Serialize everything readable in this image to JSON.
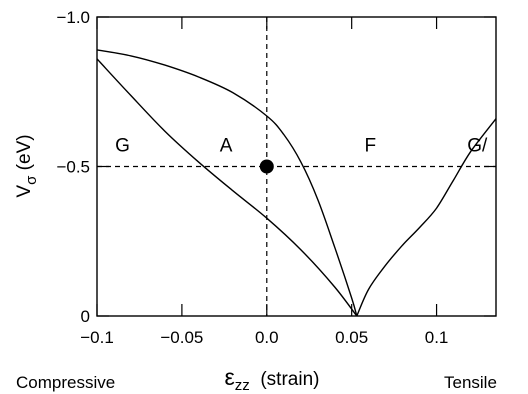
{
  "chart_data": {
    "type": "line",
    "title": "",
    "xlabel": {
      "symbol": "ε",
      "subscript": "zz",
      "text": "(strain)"
    },
    "ylabel": {
      "symbol": "V",
      "subscript": "σ",
      "text": "(eV)"
    },
    "xlim": [
      -0.1,
      0.135
    ],
    "ylim": [
      0,
      -1.0
    ],
    "x_ticks": [
      {
        "value": -0.1,
        "label": "−0.1"
      },
      {
        "value": -0.05,
        "label": "−0.05"
      },
      {
        "value": 0.0,
        "label": "0.0"
      },
      {
        "value": 0.05,
        "label": "0.05"
      },
      {
        "value": 0.1,
        "label": "0.1"
      }
    ],
    "y_ticks": [
      {
        "value": -1.0,
        "label": "−1.0"
      },
      {
        "value": -0.5,
        "label": "−0.5"
      },
      {
        "value": 0.0,
        "label": "0"
      }
    ],
    "series": [
      {
        "x": [
          -0.1,
          -0.08,
          -0.06,
          -0.04,
          -0.02,
          0.0,
          0.02,
          0.04,
          0.053
        ],
        "y": [
          -0.86,
          -0.737,
          -0.618,
          -0.514,
          -0.419,
          -0.327,
          -0.222,
          -0.097,
          0.0
        ]
      },
      {
        "x": [
          -0.1,
          -0.08,
          -0.06,
          -0.04,
          -0.02,
          0.0,
          0.01,
          0.02,
          0.03,
          0.04,
          0.05,
          0.053
        ],
        "y": [
          -0.89,
          -0.87,
          -0.839,
          -0.799,
          -0.747,
          -0.669,
          -0.607,
          -0.516,
          -0.39,
          -0.23,
          -0.06,
          0.0
        ]
      },
      {
        "x": [
          0.053,
          0.06,
          0.07,
          0.08,
          0.09,
          0.1,
          0.11,
          0.12,
          0.135
        ],
        "y": [
          0.0,
          -0.09,
          -0.17,
          -0.237,
          -0.296,
          -0.361,
          -0.455,
          -0.549,
          -0.66
        ]
      }
    ],
    "reference_lines": [
      {
        "orientation": "vertical",
        "x": 0.0
      },
      {
        "orientation": "horizontal",
        "y": -0.5
      }
    ],
    "marker": {
      "x": 0.0,
      "y": -0.5,
      "color": "#000000"
    },
    "region_labels": [
      {
        "text": "G",
        "x": -0.085,
        "y": -0.55
      },
      {
        "text": "A",
        "x": -0.024,
        "y": -0.55
      },
      {
        "text": "F",
        "x": 0.061,
        "y": -0.55
      },
      {
        "text": "G/",
        "x": 0.124,
        "y": -0.55
      }
    ],
    "bottom_labels": {
      "left": "Compressive",
      "right": "Tensile"
    },
    "grid": false,
    "legend": "none"
  }
}
